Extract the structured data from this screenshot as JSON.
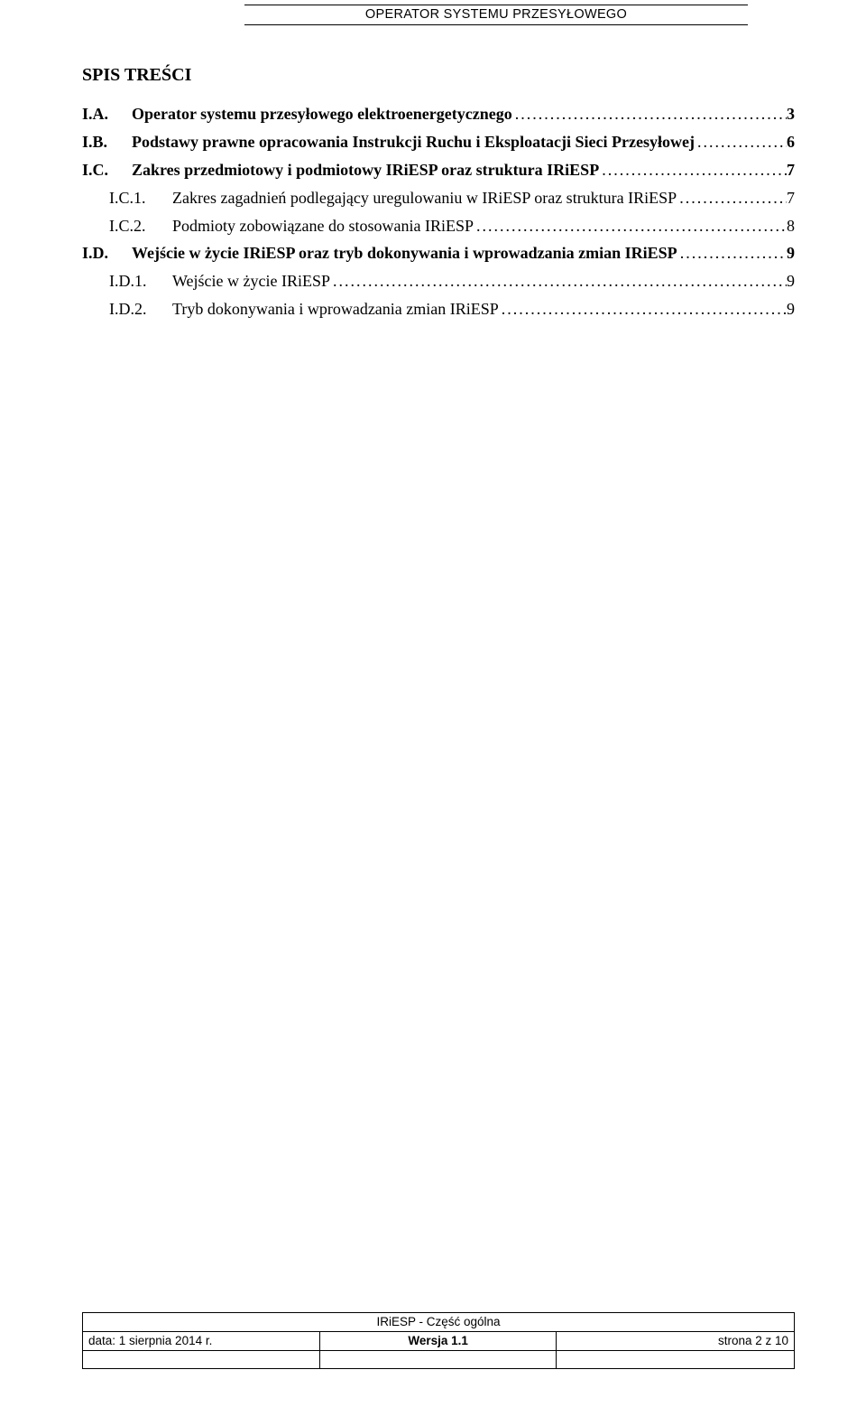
{
  "header": {
    "text": "OPERATOR SYSTEMU PRZESYŁOWEGO"
  },
  "toc": {
    "title": "SPIS TREŚCI",
    "entries": [
      {
        "level": 1,
        "num": "I.A.",
        "label": "Operator systemu przesyłowego elektroenergetycznego",
        "page": "3"
      },
      {
        "level": 1,
        "num": "I.B.",
        "label": "Podstawy prawne opracowania Instrukcji Ruchu i Eksploatacji Sieci Przesyłowej",
        "page": "6"
      },
      {
        "level": 1,
        "num": "I.C.",
        "label": "Zakres przedmiotowy i podmiotowy IRiESP oraz struktura IRiESP",
        "page": "7"
      },
      {
        "level": 2,
        "num": "I.C.1.",
        "label": "Zakres zagadnień podlegający uregulowaniu w IRiESP oraz struktura IRiESP",
        "page": "7"
      },
      {
        "level": 2,
        "num": "I.C.2.",
        "label": "Podmioty zobowiązane do stosowania IRiESP",
        "page": "8"
      },
      {
        "level": 1,
        "num": "I.D.",
        "label": "Wejście w życie IRiESP oraz tryb dokonywania i wprowadzania zmian IRiESP",
        "page": "9"
      },
      {
        "level": 2,
        "num": "I.D.1.",
        "label": "Wejście w życie IRiESP",
        "page": "9"
      },
      {
        "level": 2,
        "num": "I.D.2.",
        "label": "Tryb dokonywania i wprowadzania zmian IRiESP",
        "page": "9"
      }
    ]
  },
  "footer": {
    "title": "IRiESP - Część ogólna",
    "date": "data: 1 sierpnia 2014 r.",
    "version": "Wersja 1.1",
    "pageinfo": "strona 2 z 10"
  },
  "leader_fill": "............................................................................................................................................................................................................"
}
